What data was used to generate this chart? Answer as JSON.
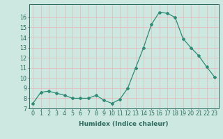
{
  "x": [
    0,
    1,
    2,
    3,
    4,
    5,
    6,
    7,
    8,
    9,
    10,
    11,
    12,
    13,
    14,
    15,
    16,
    17,
    18,
    19,
    20,
    21,
    22,
    23
  ],
  "y": [
    7.5,
    8.6,
    8.7,
    8.5,
    8.3,
    8.0,
    8.0,
    8.0,
    8.3,
    7.8,
    7.5,
    7.9,
    9.0,
    11.0,
    13.0,
    15.3,
    16.5,
    16.4,
    16.0,
    13.9,
    13.0,
    12.2,
    11.1,
    10.1
  ],
  "line_color": "#2e8b74",
  "marker": "D",
  "marker_size": 2.0,
  "bg_color": "#cce8e0",
  "grid_color": "#e8b8b8",
  "xlabel": "Humidex (Indice chaleur)",
  "ylim": [
    7,
    17
  ],
  "xlim_min": -0.5,
  "xlim_max": 23.5,
  "yticks": [
    7,
    8,
    9,
    10,
    11,
    12,
    13,
    14,
    15,
    16
  ],
  "xticks": [
    0,
    1,
    2,
    3,
    4,
    5,
    6,
    7,
    8,
    9,
    10,
    11,
    12,
    13,
    14,
    15,
    16,
    17,
    18,
    19,
    20,
    21,
    22,
    23
  ],
  "xtick_labels": [
    "0",
    "1",
    "2",
    "3",
    "4",
    "5",
    "6",
    "7",
    "8",
    "9",
    "10",
    "11",
    "12",
    "13",
    "14",
    "15",
    "16",
    "17",
    "18",
    "19",
    "20",
    "21",
    "22",
    "23"
  ],
  "font_color": "#2e6b60",
  "label_fontsize": 6.5,
  "tick_fontsize": 5.8,
  "linewidth": 0.9
}
